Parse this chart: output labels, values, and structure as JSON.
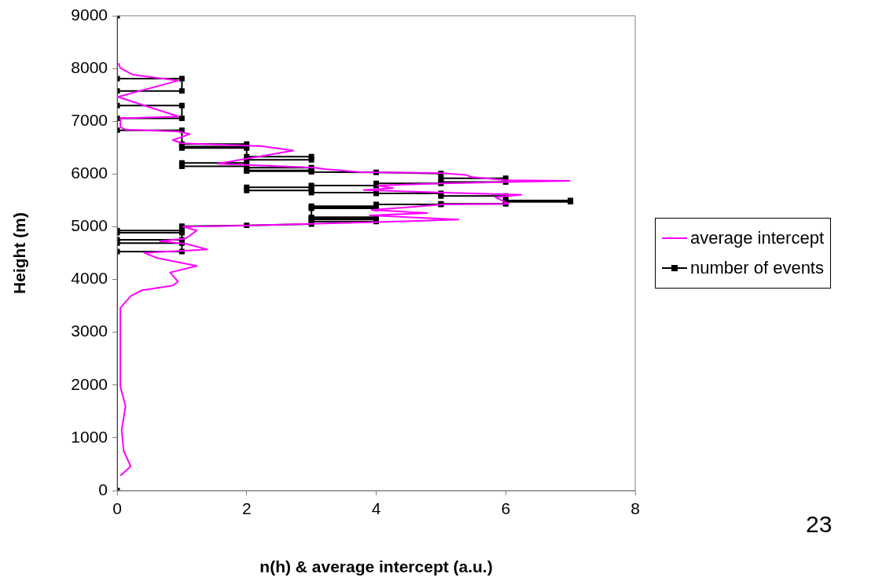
{
  "chart_data": {
    "type": "line",
    "xlabel": "n(h) & average intercept (a.u.)",
    "ylabel": "Height (m)",
    "xlim": [
      0,
      8
    ],
    "xticks": [
      0,
      2,
      4,
      6,
      8
    ],
    "ylim": [
      0,
      9000
    ],
    "yticks": [
      0,
      1000,
      2000,
      3000,
      4000,
      5000,
      6000,
      7000,
      8000,
      9000
    ],
    "grid": false,
    "legend": "right",
    "annotations": [
      "23"
    ],
    "series": [
      {
        "name": "average intercept",
        "color": "#ff00ff",
        "marker": "none",
        "x": [
          0.02,
          0.05,
          0.24,
          0.94,
          0.01,
          0.95,
          0.05,
          0.05,
          0.13,
          0.95,
          1.12,
          0.86,
          1.0,
          2.0,
          2.24,
          2.72,
          1.55,
          3.05,
          3.2,
          3.77,
          4.95,
          5.39,
          5.47,
          6.0,
          6.99,
          6.04,
          5.03,
          4.02,
          4.26,
          3.81,
          5.03,
          6.24,
          5.84,
          6.04,
          5.03,
          4.66,
          3.93,
          4.79,
          3.9,
          5.27,
          4.0,
          1.83,
          1.02,
          1.23,
          1.06,
          0.66,
          1.06,
          1.39,
          0.42,
          0.62,
          1.23,
          0.82,
          0.94,
          0.86,
          0.38,
          0.21,
          0.05,
          0.05,
          0.13,
          0.07,
          0.1,
          0.21,
          0.05
        ],
        "values": [
          8100,
          8008,
          7884,
          7769,
          7462,
          7089,
          7054,
          6890,
          6840,
          6806,
          6756,
          6642,
          6582,
          6538,
          6527,
          6443,
          6195,
          6120,
          6095,
          6035,
          6020,
          5981,
          5946,
          5882,
          5872,
          5847,
          5822,
          5782,
          5733,
          5697,
          5648,
          5608,
          5563,
          5435,
          5425,
          5385,
          5321,
          5261,
          5216,
          5137,
          5087,
          5018,
          5003,
          4928,
          4779,
          4729,
          4680,
          4571,
          4506,
          4407,
          4258,
          4133,
          3960,
          3885,
          3796,
          3686,
          3462,
          1972,
          1599,
          1152,
          756,
          458,
          283
        ]
      },
      {
        "name": "number of events",
        "color": "#000000",
        "marker": "square",
        "x": [
          0,
          0,
          1,
          1,
          0,
          0,
          1,
          1,
          0,
          0,
          1,
          1,
          2,
          2,
          1,
          1,
          2,
          2,
          3,
          3,
          2,
          2,
          1,
          1,
          2,
          2,
          3,
          3,
          2,
          2,
          3,
          3,
          4,
          5,
          5,
          6,
          6,
          5,
          5,
          4,
          4,
          3,
          3,
          2,
          2,
          3,
          3,
          4,
          4,
          5,
          5,
          6,
          6,
          7,
          7,
          6,
          6,
          5,
          5,
          4,
          4,
          3,
          3,
          4,
          4,
          3,
          3,
          4,
          4,
          3,
          3,
          4,
          4,
          3,
          3,
          2,
          1,
          1,
          0,
          0,
          1,
          1,
          0,
          0,
          1,
          1,
          0,
          0
        ],
        "values": [
          9000,
          7809,
          7809,
          7575,
          7575,
          7298,
          7298,
          7054,
          7054,
          6830,
          6830,
          6568,
          6568,
          6520,
          6520,
          6493,
          6493,
          6329,
          6329,
          6269,
          6269,
          6210,
          6210,
          6145,
          6145,
          6120,
          6120,
          6070,
          6070,
          6055,
          6055,
          6040,
          6030,
          6010,
          5921,
          5921,
          5847,
          5847,
          5822,
          5822,
          5782,
          5782,
          5748,
          5748,
          5688,
          5688,
          5648,
          5648,
          5633,
          5633,
          5584,
          5584,
          5499,
          5499,
          5474,
          5474,
          5435,
          5435,
          5425,
          5425,
          5390,
          5390,
          5370,
          5370,
          5350,
          5350,
          5180,
          5180,
          5160,
          5160,
          5140,
          5140,
          5100,
          5100,
          5052,
          5027,
          5010,
          4928,
          4928,
          4888,
          4888,
          4754,
          4754,
          4690,
          4690,
          4531,
          4531,
          0
        ]
      }
    ]
  }
}
